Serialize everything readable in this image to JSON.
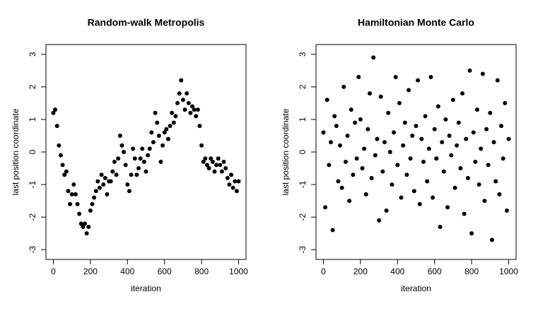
{
  "chart_data": [
    {
      "type": "scatter",
      "title": "Random-walk Metropolis",
      "x_label": "iteration",
      "y_label": "last position coordinate",
      "xlim": [
        -40,
        1040
      ],
      "ylim": [
        -3.3,
        3.3
      ],
      "xticks": [
        0,
        200,
        400,
        600,
        800,
        1000
      ],
      "yticks": [
        -3,
        -2,
        -1,
        0,
        1,
        2,
        3
      ],
      "color": "#000000",
      "x": [
        0,
        10,
        20,
        30,
        40,
        50,
        60,
        70,
        80,
        90,
        100,
        110,
        120,
        130,
        140,
        150,
        160,
        170,
        180,
        190,
        200,
        210,
        220,
        230,
        240,
        250,
        260,
        270,
        280,
        290,
        300,
        310,
        320,
        330,
        340,
        350,
        360,
        370,
        380,
        390,
        400,
        410,
        420,
        430,
        440,
        450,
        460,
        470,
        480,
        490,
        500,
        510,
        520,
        530,
        540,
        550,
        560,
        570,
        580,
        590,
        600,
        610,
        620,
        630,
        640,
        650,
        660,
        670,
        680,
        690,
        700,
        710,
        720,
        730,
        740,
        750,
        760,
        770,
        780,
        790,
        800,
        810,
        820,
        830,
        840,
        850,
        860,
        870,
        880,
        890,
        900,
        910,
        920,
        930,
        940,
        950,
        960,
        970,
        980,
        990,
        1000
      ],
      "values": [
        1.2,
        1.3,
        0.8,
        0.2,
        -0.1,
        -0.4,
        -0.7,
        -0.6,
        -1.2,
        -1.6,
        -1.3,
        -1.0,
        -1.3,
        -1.6,
        -1.9,
        -2.2,
        -2.3,
        -2.2,
        -2.5,
        -2.3,
        -1.8,
        -1.6,
        -1.4,
        -1.2,
        -0.9,
        -1.1,
        -0.7,
        -1.0,
        -0.8,
        -1.3,
        -0.9,
        -0.9,
        -0.6,
        -0.3,
        -0.7,
        -0.2,
        0.5,
        0.2,
        0.0,
        -0.4,
        -1.0,
        -1.2,
        -0.7,
        0.1,
        -0.2,
        -0.7,
        -0.5,
        -0.2,
        0.1,
        -0.3,
        -0.6,
        -0.1,
        0.1,
        0.6,
        0.3,
        1.2,
        0.9,
        0.5,
        -0.3,
        0.2,
        0.6,
        0.7,
        0.4,
        0.8,
        1.2,
        0.9,
        1.1,
        1.5,
        1.8,
        2.2,
        1.6,
        1.3,
        1.8,
        1.5,
        1.2,
        1.4,
        1.3,
        1.1,
        1.3,
        0.8,
        0.2,
        -0.3,
        -0.2,
        -0.4,
        -0.5,
        -0.2,
        -0.3,
        -0.6,
        -0.4,
        -0.2,
        -0.4,
        -0.6,
        -0.3,
        -0.5,
        -0.8,
        -1.0,
        -0.7,
        -1.1,
        -0.9,
        -1.2,
        -0.9
      ]
    },
    {
      "type": "scatter",
      "title": "Hamiltonian Monte Carlo",
      "x_label": "iteration",
      "y_label": "last position coordinate",
      "xlim": [
        -40,
        1040
      ],
      "ylim": [
        -3.3,
        3.3
      ],
      "xticks": [
        0,
        200,
        400,
        600,
        800,
        1000
      ],
      "yticks": [
        -3,
        -2,
        -1,
        0,
        1,
        2,
        3
      ],
      "color": "#000000",
      "x": [
        0,
        10,
        20,
        30,
        40,
        50,
        60,
        70,
        80,
        90,
        100,
        110,
        120,
        130,
        140,
        150,
        160,
        170,
        180,
        190,
        200,
        210,
        220,
        230,
        240,
        250,
        260,
        270,
        280,
        290,
        300,
        310,
        320,
        330,
        340,
        350,
        360,
        370,
        380,
        390,
        400,
        410,
        420,
        430,
        440,
        450,
        460,
        470,
        480,
        490,
        500,
        510,
        520,
        530,
        540,
        550,
        560,
        570,
        580,
        590,
        600,
        610,
        620,
        630,
        640,
        650,
        660,
        670,
        680,
        690,
        700,
        710,
        720,
        730,
        740,
        750,
        760,
        770,
        780,
        790,
        800,
        810,
        820,
        830,
        840,
        850,
        860,
        870,
        880,
        890,
        900,
        910,
        920,
        930,
        940,
        950,
        960,
        970,
        980,
        990,
        1000
      ],
      "values": [
        0.6,
        -1.7,
        1.6,
        -0.4,
        0.3,
        -2.4,
        1.1,
        0.8,
        -0.9,
        0.2,
        -1.1,
        2.0,
        -0.3,
        0.5,
        -1.5,
        1.3,
        -0.7,
        0.9,
        -0.2,
        2.3,
        1.0,
        -0.5,
        0.1,
        -1.3,
        0.7,
        1.8,
        -0.8,
        2.9,
        -0.1,
        0.4,
        -2.1,
        1.7,
        -0.6,
        0.3,
        -1.8,
        1.2,
        0.0,
        -1.0,
        0.6,
        2.3,
        -0.4,
        1.5,
        -1.4,
        0.2,
        0.9,
        -0.7,
        1.9,
        -0.2,
        0.5,
        -1.2,
        0.8,
        2.2,
        -1.6,
        0.4,
        -0.3,
        1.1,
        -0.9,
        0.1,
        2.3,
        -1.4,
        0.7,
        -0.2,
        1.4,
        -2.3,
        0.3,
        -0.6,
        1.0,
        -1.7,
        0.5,
        -0.1,
        1.6,
        -1.1,
        0.2,
        0.9,
        -0.5,
        1.8,
        -1.9,
        0.4,
        -0.8,
        2.5,
        -2.5,
        0.6,
        -0.3,
        1.3,
        -1.0,
        0.1,
        2.4,
        -1.5,
        0.7,
        -0.4,
        1.2,
        -2.7,
        0.3,
        -0.9,
        2.2,
        -1.3,
        0.8,
        -0.2,
        1.5,
        -1.8,
        0.4
      ]
    }
  ]
}
